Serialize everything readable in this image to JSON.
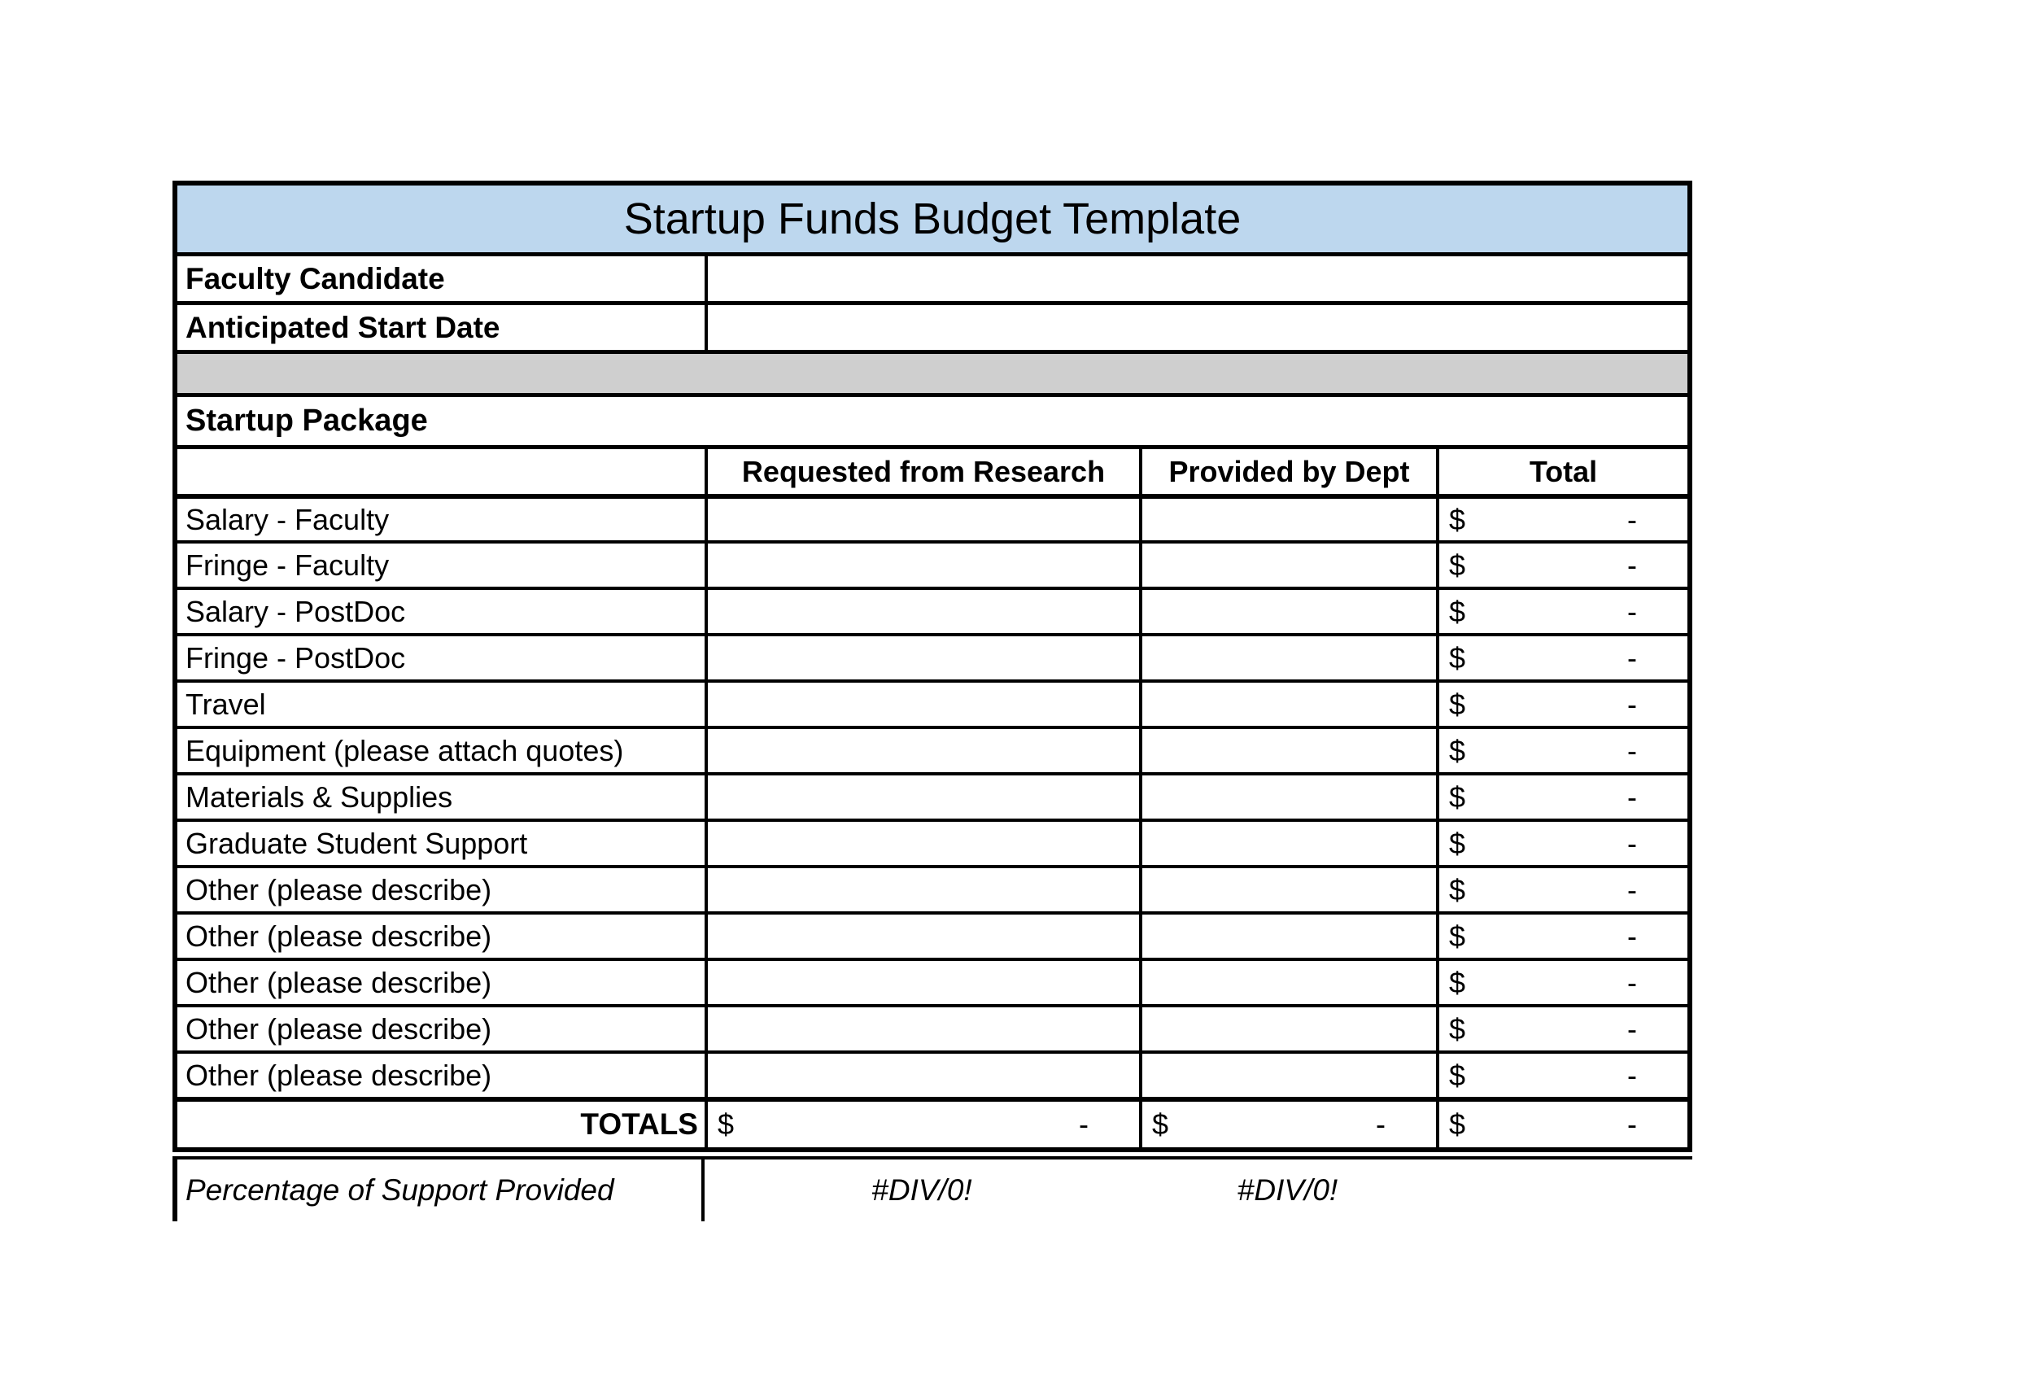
{
  "title": "Startup Funds Budget Template",
  "info_rows": [
    {
      "label": "Faculty Candidate",
      "value": ""
    },
    {
      "label": "Anticipated Start Date",
      "value": ""
    }
  ],
  "section_label": "Startup Package",
  "columns": {
    "item": "",
    "requested": "Requested from Research",
    "provided": "Provided by Dept",
    "total": "Total"
  },
  "currency": {
    "symbol": "$",
    "zero": "-"
  },
  "line_items": [
    {
      "label": "Salary - Faculty",
      "requested": "",
      "provided": "",
      "total": "$ -"
    },
    {
      "label": "Fringe - Faculty",
      "requested": "",
      "provided": "",
      "total": "$ -"
    },
    {
      "label": "Salary - PostDoc",
      "requested": "",
      "provided": "",
      "total": "$ -"
    },
    {
      "label": "Fringe - PostDoc",
      "requested": "",
      "provided": "",
      "total": "$ -"
    },
    {
      "label": "Travel",
      "requested": "",
      "provided": "",
      "total": "$ -"
    },
    {
      "label": "Equipment (please attach quotes)",
      "requested": "",
      "provided": "",
      "total": "$ -"
    },
    {
      "label": "Materials & Supplies",
      "requested": "",
      "provided": "",
      "total": "$ -"
    },
    {
      "label": "Graduate Student Support",
      "requested": "",
      "provided": "",
      "total": "$ -"
    },
    {
      "label": "Other (please describe)",
      "requested": "",
      "provided": "",
      "total": "$ -"
    },
    {
      "label": "Other (please describe)",
      "requested": "",
      "provided": "",
      "total": "$ -"
    },
    {
      "label": "Other (please describe)",
      "requested": "",
      "provided": "",
      "total": "$ -"
    },
    {
      "label": "Other (please describe)",
      "requested": "",
      "provided": "",
      "total": "$ -"
    },
    {
      "label": "Other (please describe)",
      "requested": "",
      "provided": "",
      "total": "$ -"
    }
  ],
  "totals": {
    "label": "TOTALS",
    "requested": "-",
    "provided": "-",
    "total": "-"
  },
  "percentage": {
    "label": "Percentage of Support Provided",
    "requested": "#DIV/0!",
    "provided": "#DIV/0!"
  },
  "colors": {
    "title_bg": "#BDD7EE",
    "divider_row_bg": "#CFCFCF",
    "border": "#000000",
    "page_bg": "#FFFFFF"
  }
}
